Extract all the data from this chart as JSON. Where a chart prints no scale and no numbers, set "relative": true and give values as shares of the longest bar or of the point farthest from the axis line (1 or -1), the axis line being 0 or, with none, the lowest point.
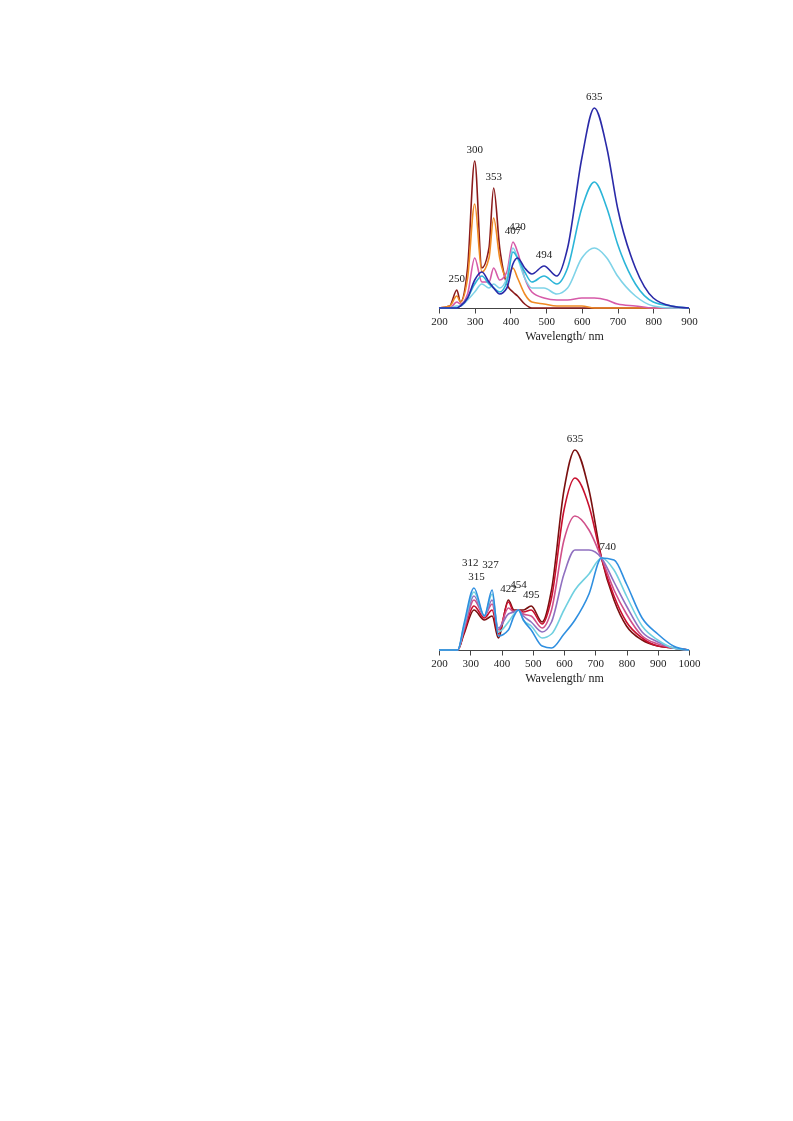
{
  "chart_data": [
    {
      "type": "line",
      "relative": true,
      "xlabel": "Wavelength/ nm",
      "xlim": [
        200,
        900
      ],
      "xticks": [
        200,
        300,
        400,
        500,
        600,
        700,
        800,
        900
      ],
      "grid": false,
      "legend": false,
      "marker": "none",
      "line_style": "solid",
      "x": [
        200,
        230,
        250,
        260,
        280,
        300,
        320,
        340,
        353,
        370,
        390,
        407,
        420,
        440,
        460,
        494,
        530,
        560,
        600,
        635,
        670,
        700,
        750,
        800,
        850,
        900
      ],
      "series": [
        {
          "color": "#8b1a1a",
          "values": [
            0,
            0.01,
            0.09,
            0.03,
            0.2,
            0.735,
            0.2,
            0.3,
            0.6,
            0.3,
            0.12,
            0.08,
            0.06,
            0.02,
            0,
            0,
            0,
            0,
            0,
            0,
            0,
            0,
            0,
            0,
            0,
            0
          ]
        },
        {
          "color": "#f08a24",
          "values": [
            0,
            0.01,
            0.06,
            0.03,
            0.15,
            0.52,
            0.18,
            0.25,
            0.45,
            0.25,
            0.15,
            0.2,
            0.15,
            0.07,
            0.03,
            0.02,
            0.01,
            0.01,
            0.01,
            0,
            0,
            0,
            0,
            0,
            0,
            0
          ]
        },
        {
          "color": "#d65aa8",
          "values": [
            0,
            0,
            0.03,
            0.02,
            0.07,
            0.25,
            0.13,
            0.13,
            0.2,
            0.14,
            0.18,
            0.33,
            0.28,
            0.15,
            0.08,
            0.05,
            0.04,
            0.04,
            0.05,
            0.05,
            0.04,
            0.02,
            0.01,
            0,
            0,
            0
          ]
        },
        {
          "color": "#7fd3e8",
          "values": [
            0,
            0,
            0.01,
            0.01,
            0.04,
            0.08,
            0.12,
            0.1,
            0.12,
            0.1,
            0.15,
            0.3,
            0.25,
            0.15,
            0.1,
            0.1,
            0.07,
            0.1,
            0.25,
            0.3,
            0.25,
            0.16,
            0.06,
            0.01,
            0,
            0
          ]
        },
        {
          "color": "#2bb5d8",
          "values": [
            0,
            0,
            0,
            0.01,
            0.05,
            0.12,
            0.16,
            0.12,
            0.1,
            0.08,
            0.13,
            0.28,
            0.25,
            0.18,
            0.13,
            0.16,
            0.12,
            0.2,
            0.5,
            0.63,
            0.5,
            0.32,
            0.12,
            0.03,
            0.01,
            0
          ]
        },
        {
          "color": "#2a2aa8",
          "values": [
            0,
            0,
            0,
            0.01,
            0.05,
            0.14,
            0.18,
            0.13,
            0.1,
            0.07,
            0.1,
            0.22,
            0.25,
            0.2,
            0.17,
            0.21,
            0.16,
            0.3,
            0.75,
            1,
            0.8,
            0.5,
            0.2,
            0.05,
            0.01,
            0
          ]
        }
      ],
      "annotations": [
        {
          "text": "250",
          "x": 250,
          "y": 0.09
        },
        {
          "text": "300",
          "x": 300,
          "y": 0.735
        },
        {
          "text": "353",
          "x": 353,
          "y": 0.6
        },
        {
          "text": "407",
          "x": 407,
          "y": 0.33
        },
        {
          "text": "420",
          "x": 420,
          "y": 0.28
        },
        {
          "text": "494",
          "x": 494,
          "y": 0.21
        },
        {
          "text": "635",
          "x": 635,
          "y": 1
        }
      ]
    },
    {
      "type": "line",
      "relative": true,
      "xlabel": "Wavelength/ nm",
      "xlim": [
        200,
        1000
      ],
      "xticks": [
        200,
        300,
        400,
        500,
        600,
        700,
        800,
        900,
        1000
      ],
      "grid": false,
      "legend": false,
      "marker": "none",
      "line_style": "solid",
      "x": [
        200,
        260,
        280,
        312,
        345,
        370,
        390,
        422,
        440,
        454,
        470,
        495,
        530,
        560,
        600,
        635,
        680,
        720,
        760,
        800,
        850,
        900,
        950,
        1000
      ],
      "series": [
        {
          "color": "#7a1010",
          "values": [
            0,
            0,
            0.08,
            0.2,
            0.15,
            0.17,
            0.06,
            0.25,
            0.2,
            0.2,
            0.2,
            0.22,
            0.14,
            0.3,
            0.8,
            1,
            0.8,
            0.46,
            0.25,
            0.12,
            0.05,
            0.02,
            0.01,
            0
          ]
        },
        {
          "color": "#c8102e",
          "values": [
            0,
            0,
            0.09,
            0.22,
            0.16,
            0.2,
            0.08,
            0.24,
            0.19,
            0.2,
            0.19,
            0.2,
            0.13,
            0.26,
            0.7,
            0.86,
            0.72,
            0.46,
            0.27,
            0.14,
            0.06,
            0.02,
            0.01,
            0
          ]
        },
        {
          "color": "#d0508a",
          "values": [
            0,
            0,
            0.1,
            0.25,
            0.17,
            0.23,
            0.1,
            0.21,
            0.19,
            0.2,
            0.18,
            0.17,
            0.11,
            0.2,
            0.55,
            0.67,
            0.6,
            0.46,
            0.3,
            0.18,
            0.07,
            0.03,
            0.01,
            0
          ]
        },
        {
          "color": "#9070c0",
          "values": [
            0,
            0,
            0.11,
            0.27,
            0.17,
            0.25,
            0.11,
            0.18,
            0.19,
            0.2,
            0.17,
            0.14,
            0.09,
            0.14,
            0.38,
            0.5,
            0.5,
            0.46,
            0.34,
            0.22,
            0.09,
            0.04,
            0.01,
            0
          ]
        },
        {
          "color": "#70d0e0",
          "values": [
            0,
            0,
            0.12,
            0.29,
            0.17,
            0.28,
            0.09,
            0.14,
            0.18,
            0.2,
            0.15,
            0.12,
            0.06,
            0.08,
            0.2,
            0.3,
            0.38,
            0.46,
            0.4,
            0.27,
            0.12,
            0.05,
            0.01,
            0
          ]
        },
        {
          "color": "#2f8fe0",
          "values": [
            0,
            0,
            0.13,
            0.31,
            0.17,
            0.3,
            0.07,
            0.1,
            0.17,
            0.2,
            0.15,
            0.1,
            0.02,
            0.01,
            0.08,
            0.15,
            0.28,
            0.46,
            0.45,
            0.33,
            0.16,
            0.08,
            0.02,
            0
          ]
        }
      ],
      "annotations": [
        {
          "text": "315",
          "x": 320,
          "y": 0.31
        },
        {
          "text": "312",
          "x": 300,
          "y": 0.31
        },
        {
          "text": "327",
          "x": 365,
          "y": 0.3
        },
        {
          "text": "422",
          "x": 422,
          "y": 0.25
        },
        {
          "text": "454",
          "x": 454,
          "y": 0.2
        },
        {
          "text": "495",
          "x": 495,
          "y": 0.22
        },
        {
          "text": "635",
          "x": 635,
          "y": 1
        },
        {
          "text": "740",
          "x": 740,
          "y": 0.46
        }
      ]
    }
  ]
}
